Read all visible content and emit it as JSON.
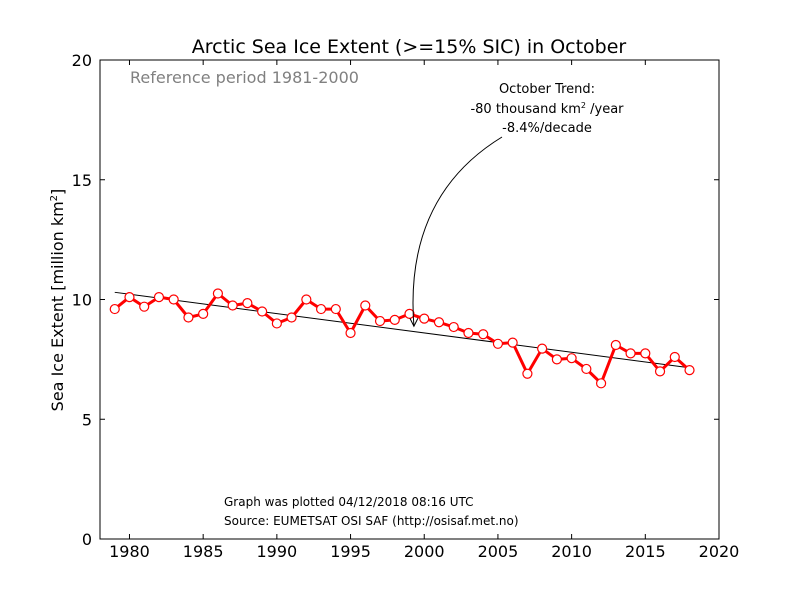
{
  "chart_data": {
    "type": "line",
    "title": "Arctic Sea Ice Extent (>=15% SIC) in October",
    "subtitle": "Reference period 1981-2000",
    "xlabel": "",
    "ylabel": "Sea Ice Extent [million km",
    "ylabel_sup": "2",
    "ylabel_end": "]",
    "xlim": [
      1978,
      2020
    ],
    "ylim": [
      0,
      20
    ],
    "xticks": [
      1980,
      1985,
      1990,
      1995,
      2000,
      2005,
      2010,
      2015,
      2020
    ],
    "yticks": [
      0,
      5,
      10,
      15,
      20
    ],
    "grid": false,
    "series": [
      {
        "x": [
          1979,
          1980,
          1981,
          1982,
          1983,
          1984,
          1985,
          1986,
          1987,
          1988,
          1989,
          1990,
          1991,
          1992,
          1993,
          1994,
          1995,
          1996,
          1997,
          1998,
          1999,
          2000,
          2001,
          2002,
          2003,
          2004,
          2005,
          2006,
          2007,
          2008,
          2009,
          2010,
          2011,
          2012,
          2013,
          2014,
          2015,
          2016,
          2017,
          2018
        ],
        "values": [
          9.6,
          10.1,
          9.7,
          10.1,
          10.0,
          9.25,
          9.4,
          10.25,
          9.75,
          9.85,
          9.5,
          9.0,
          9.25,
          10.0,
          9.6,
          9.6,
          8.6,
          9.75,
          9.1,
          9.15,
          9.4,
          9.2,
          9.05,
          8.85,
          8.6,
          8.55,
          8.15,
          8.2,
          6.9,
          7.95,
          7.5,
          7.55,
          7.1,
          6.5,
          8.1,
          7.75,
          7.75,
          7.0,
          7.6,
          7.05
        ],
        "color": "#ff0000"
      }
    ],
    "trend": {
      "x": [
        1979,
        2018
      ],
      "values": [
        10.3,
        7.15
      ],
      "color": "#000000"
    },
    "annotation": {
      "lines": [
        "October Trend:",
        "-80 thousand km",
        "-8.4%/decade"
      ],
      "line2_sup": "2",
      "line2_end": " /year",
      "arrow_target": [
        1999.3,
        8.8
      ]
    },
    "footer": {
      "plotted": "Graph was plotted 04/12/2018 08:16 UTC",
      "source": "Source: EUMETSAT OSI SAF (http://osisaf.met.no)"
    }
  }
}
